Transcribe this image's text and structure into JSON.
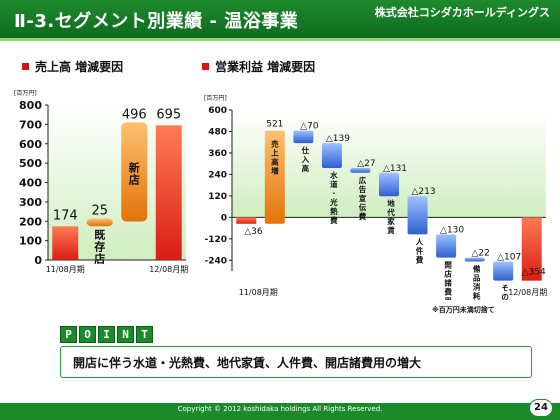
{
  "header": {
    "title": "Ⅱ-3.セグメント別業績 - 温浴事業",
    "company": "株式会社コシダカホールディングス"
  },
  "colors": {
    "header_green": "#0f6b1f",
    "bar_red": "#e8382a",
    "bar_orange": "#f08c1a",
    "bar_blue": "#3d6fd0",
    "bullet_red": "#d0161a",
    "chart_bg_green": "#d9f2c9"
  },
  "sections": {
    "left_title": "売上高 増減要因",
    "right_title": "営業利益 増減要因"
  },
  "chart_data": [
    {
      "type": "bar",
      "subtype": "waterfall",
      "title": "売上高 増減要因",
      "unit": "百万円",
      "categories": [
        "11/08月期",
        "既存店",
        "新店",
        "12/08月期"
      ],
      "bar_kinds": [
        "total",
        "delta",
        "delta",
        "total"
      ],
      "values": [
        174,
        25,
        496,
        695
      ],
      "value_labels": [
        "174",
        "25",
        "496",
        "695"
      ],
      "bar_labels": [
        "",
        "既存店",
        "新店",
        ""
      ],
      "x_labels": [
        "11/08月期",
        "",
        "",
        "12/08月期"
      ],
      "ylim": [
        0,
        800
      ],
      "yticks": [
        0,
        100,
        200,
        300,
        400,
        500,
        600,
        700,
        800
      ],
      "grid": false,
      "legend": "none"
    },
    {
      "type": "bar",
      "subtype": "waterfall",
      "title": "営業利益 増減要因",
      "unit": "百万円",
      "categories": [
        "11/08月期",
        "売上高増",
        "仕入高",
        "水道・光熱費",
        "広告宣伝費",
        "地代家賃",
        "人件費",
        "開店諸費用",
        "備品消耗品",
        "その他",
        "12/08月期"
      ],
      "bar_kinds": [
        "total",
        "delta",
        "delta",
        "delta",
        "delta",
        "delta",
        "delta",
        "delta",
        "delta",
        "delta",
        "total"
      ],
      "values": [
        -36,
        521,
        -70,
        -139,
        -27,
        -131,
        -213,
        -130,
        -22,
        -107,
        -354
      ],
      "value_labels": [
        "△36",
        "521",
        "△70",
        "△139",
        "△27",
        "△131",
        "△213",
        "△130",
        "△22",
        "△107",
        "△354"
      ],
      "bar_labels": [
        "",
        "売上高増",
        "仕入高",
        "水道・光熱費",
        "広告宣伝費",
        "地代家賃",
        "人件費",
        "開店諸費用",
        "備品消耗品",
        "その他",
        ""
      ],
      "x_labels": [
        "11/08月期",
        "",
        "",
        "",
        "",
        "",
        "",
        "",
        "",
        "",
        "12/08月期"
      ],
      "ylim": [
        -300,
        600
      ],
      "yticks": [
        -240,
        -120,
        0,
        120,
        240,
        360,
        480,
        600
      ],
      "grid": false,
      "legend": "none",
      "note": "※百万円未満切捨て"
    }
  ],
  "point": {
    "letters": [
      "P",
      "O",
      "I",
      "N",
      "T"
    ],
    "text": "開店に伴う水道・光熱費、地代家賃、人件費、開店諸費用の増大"
  },
  "footer": {
    "copyright": "Copyright © 2012 koshidaka holdings All Rights Reserved.",
    "page": "24"
  }
}
